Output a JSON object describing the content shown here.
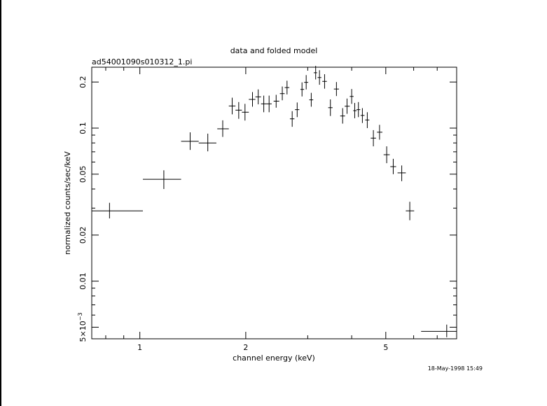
{
  "chart_data": {
    "type": "scatter",
    "title": "data and folded model",
    "subtitle": "ad54001090s010312_1.pi",
    "xlabel": "channel energy (keV)",
    "ylabel": "normalized counts/sec/keV",
    "timestamp": "18-May-1998 15:49",
    "x_scale": "log",
    "y_scale": "log",
    "xlim": [
      0.73,
      7.95
    ],
    "ylim": [
      0.0042,
      0.25
    ],
    "x_ticks": [
      {
        "value": 1,
        "label": "1"
      },
      {
        "value": 2,
        "label": "2"
      },
      {
        "value": 5,
        "label": "5"
      }
    ],
    "y_ticks": [
      {
        "value": 0.2,
        "label": "0.2"
      },
      {
        "value": 0.1,
        "label": "0.1"
      },
      {
        "value": 0.05,
        "label": "0.05"
      },
      {
        "value": 0.02,
        "label": "0.02"
      },
      {
        "value": 0.01,
        "label": "0.01"
      },
      {
        "value": 0.005,
        "label": "5×10",
        "exponent": "−3"
      }
    ],
    "grid": false,
    "points": [
      {
        "x": 0.82,
        "xlo": 0.73,
        "xhi": 1.02,
        "y": 0.0288,
        "ylo": 0.0257,
        "yhi": 0.0325
      },
      {
        "x": 1.17,
        "xlo": 1.02,
        "xhi": 1.31,
        "y": 0.0463,
        "ylo": 0.04,
        "yhi": 0.053
      },
      {
        "x": 1.39,
        "xlo": 1.31,
        "xhi": 1.47,
        "y": 0.082,
        "ylo": 0.072,
        "yhi": 0.0938
      },
      {
        "x": 1.56,
        "xlo": 1.47,
        "xhi": 1.65,
        "y": 0.0799,
        "ylo": 0.0705,
        "yhi": 0.092
      },
      {
        "x": 1.72,
        "xlo": 1.66,
        "xhi": 1.79,
        "y": 0.099,
        "ylo": 0.0876,
        "yhi": 0.1124
      },
      {
        "x": 1.83,
        "xlo": 1.79,
        "xhi": 1.87,
        "y": 0.1395,
        "ylo": 0.123,
        "yhi": 0.158
      },
      {
        "x": 1.91,
        "xlo": 1.87,
        "xhi": 1.95,
        "y": 0.131,
        "ylo": 0.115,
        "yhi": 0.148
      },
      {
        "x": 1.99,
        "xlo": 1.95,
        "xhi": 2.04,
        "y": 0.127,
        "ylo": 0.112,
        "yhi": 0.144
      },
      {
        "x": 2.09,
        "xlo": 2.04,
        "xhi": 2.13,
        "y": 0.154,
        "ylo": 0.138,
        "yhi": 0.172
      },
      {
        "x": 2.17,
        "xlo": 2.13,
        "xhi": 2.21,
        "y": 0.16,
        "ylo": 0.143,
        "yhi": 0.179
      },
      {
        "x": 2.25,
        "xlo": 2.21,
        "xhi": 2.29,
        "y": 0.144,
        "ylo": 0.127,
        "yhi": 0.163
      },
      {
        "x": 2.33,
        "xlo": 2.29,
        "xhi": 2.37,
        "y": 0.144,
        "ylo": 0.127,
        "yhi": 0.163
      },
      {
        "x": 2.44,
        "xlo": 2.4,
        "xhi": 2.49,
        "y": 0.15,
        "ylo": 0.136,
        "yhi": 0.165
      },
      {
        "x": 2.54,
        "xlo": 2.5,
        "xhi": 2.58,
        "y": 0.168,
        "ylo": 0.152,
        "yhi": 0.187
      },
      {
        "x": 2.62,
        "xlo": 2.58,
        "xhi": 2.66,
        "y": 0.184,
        "ylo": 0.166,
        "yhi": 0.204
      },
      {
        "x": 2.71,
        "xlo": 2.67,
        "xhi": 2.75,
        "y": 0.115,
        "ylo": 0.102,
        "yhi": 0.129
      },
      {
        "x": 2.8,
        "xlo": 2.76,
        "xhi": 2.84,
        "y": 0.132,
        "ylo": 0.118,
        "yhi": 0.147
      },
      {
        "x": 2.89,
        "xlo": 2.86,
        "xhi": 2.93,
        "y": 0.179,
        "ylo": 0.161,
        "yhi": 0.199
      },
      {
        "x": 2.97,
        "xlo": 2.93,
        "xhi": 3.01,
        "y": 0.199,
        "ylo": 0.179,
        "yhi": 0.222
      },
      {
        "x": 3.07,
        "xlo": 3.03,
        "xhi": 3.11,
        "y": 0.153,
        "ylo": 0.138,
        "yhi": 0.17
      },
      {
        "x": 3.16,
        "xlo": 3.12,
        "xhi": 3.19,
        "y": 0.23,
        "ylo": 0.208,
        "yhi": 0.255
      },
      {
        "x": 3.24,
        "xlo": 3.2,
        "xhi": 3.28,
        "y": 0.214,
        "ylo": 0.192,
        "yhi": 0.239
      },
      {
        "x": 3.35,
        "xlo": 3.3,
        "xhi": 3.4,
        "y": 0.202,
        "ylo": 0.181,
        "yhi": 0.225
      },
      {
        "x": 3.48,
        "xlo": 3.43,
        "xhi": 3.53,
        "y": 0.136,
        "ylo": 0.12,
        "yhi": 0.154
      },
      {
        "x": 3.62,
        "xlo": 3.56,
        "xhi": 3.68,
        "y": 0.18,
        "ylo": 0.162,
        "yhi": 0.2
      },
      {
        "x": 3.77,
        "xlo": 3.71,
        "xhi": 3.83,
        "y": 0.12,
        "ylo": 0.107,
        "yhi": 0.135
      },
      {
        "x": 3.88,
        "xlo": 3.82,
        "xhi": 3.95,
        "y": 0.139,
        "ylo": 0.124,
        "yhi": 0.156
      },
      {
        "x": 4.0,
        "xlo": 3.95,
        "xhi": 4.05,
        "y": 0.161,
        "ylo": 0.144,
        "yhi": 0.18
      },
      {
        "x": 4.08,
        "xlo": 4.04,
        "xhi": 4.13,
        "y": 0.13,
        "ylo": 0.116,
        "yhi": 0.146
      },
      {
        "x": 4.18,
        "xlo": 4.13,
        "xhi": 4.23,
        "y": 0.132,
        "ylo": 0.118,
        "yhi": 0.148
      },
      {
        "x": 4.29,
        "xlo": 4.24,
        "xhi": 4.35,
        "y": 0.121,
        "ylo": 0.108,
        "yhi": 0.135
      },
      {
        "x": 4.43,
        "xlo": 4.37,
        "xhi": 4.49,
        "y": 0.113,
        "ylo": 0.1,
        "yhi": 0.127
      },
      {
        "x": 4.61,
        "xlo": 4.53,
        "xhi": 4.69,
        "y": 0.086,
        "ylo": 0.076,
        "yhi": 0.097
      },
      {
        "x": 4.8,
        "xlo": 4.72,
        "xhi": 4.89,
        "y": 0.094,
        "ylo": 0.084,
        "yhi": 0.105
      },
      {
        "x": 5.03,
        "xlo": 4.93,
        "xhi": 5.13,
        "y": 0.067,
        "ylo": 0.059,
        "yhi": 0.076
      },
      {
        "x": 5.25,
        "xlo": 5.15,
        "xhi": 5.35,
        "y": 0.056,
        "ylo": 0.05,
        "yhi": 0.063
      },
      {
        "x": 5.55,
        "xlo": 5.4,
        "xhi": 5.7,
        "y": 0.051,
        "ylo": 0.045,
        "yhi": 0.057
      },
      {
        "x": 5.85,
        "xlo": 5.7,
        "xhi": 6.02,
        "y": 0.0288,
        "ylo": 0.025,
        "yhi": 0.033
      },
      {
        "x": 7.45,
        "xlo": 6.3,
        "xhi": 7.95,
        "y": 0.0047,
        "ylo": 0.0043,
        "yhi": 0.0052
      }
    ]
  }
}
